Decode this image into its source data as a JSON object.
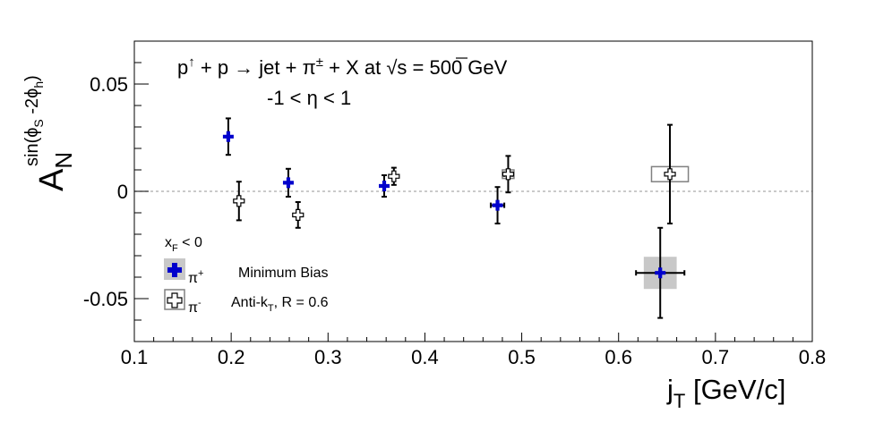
{
  "chart_data": {
    "type": "scatter",
    "title_line1_prefix": "p",
    "title_line1_sup": "↑",
    "title_line1_mid": " + p → jet + π",
    "title_line1_sup2": "±",
    "title_line1_suffix": " + X at  √s = 500 GeV",
    "title_line2": "-1 < η < 1",
    "xlabel_main": "j",
    "xlabel_sub": "T",
    "xlabel_unit": " [GeV/c]",
    "ylabel_main": "A",
    "ylabel_sub": "N",
    "ylabel_sup": "sin(ϕ",
    "ylabel_sup_sub1": "S",
    "ylabel_sup_mid": " -2ϕ",
    "ylabel_sup_sub2": "h",
    "ylabel_sup_end": ")",
    "xlim": [
      0.1,
      0.8
    ],
    "ylim": [
      -0.07,
      0.07
    ],
    "xticks": [
      0.1,
      0.2,
      0.3,
      0.4,
      0.5,
      0.6,
      0.7,
      0.8
    ],
    "xtick_labels": [
      "0.1",
      "0.2",
      "0.3",
      "0.4",
      "0.5",
      "0.6",
      "0.7",
      "0.8"
    ],
    "yticks": [
      -0.05,
      0,
      0.05
    ],
    "ytick_labels": [
      "-0.05",
      "0",
      "0.05"
    ],
    "zero_line": true,
    "legend": {
      "header_main": "x",
      "header_sub": "F",
      "header_rest": " < 0",
      "entries": [
        {
          "symbol": "π",
          "sup": "+",
          "text": "Minimum Bias"
        },
        {
          "symbol": "π",
          "sup": "-",
          "text_main": "Anti-k",
          "text_sub": "T",
          "text_rest": ", R = 0.6"
        }
      ],
      "placement": "bottom-left"
    },
    "series": [
      {
        "marker": "filled-cross",
        "color": "#0000cc",
        "syst_color": "#c8c8c8",
        "x": [
          0.197,
          0.259,
          0.358,
          0.475,
          0.643
        ],
        "y": [
          0.0255,
          0.004,
          0.0025,
          -0.0065,
          -0.038
        ],
        "yerr": [
          0.0085,
          0.0065,
          0.005,
          0.0085,
          0.021
        ],
        "xerr": [
          0.0,
          0.0,
          0.0,
          0.007,
          0.025
        ],
        "syst_x": [
          0.0,
          0.0,
          0.0,
          0.0,
          0.017
        ],
        "syst_y": [
          0.0,
          0.0,
          0.0,
          0.0,
          0.0075
        ]
      },
      {
        "marker": "open-cross",
        "color": "#000000",
        "syst_color": "#808080",
        "x": [
          0.208,
          0.269,
          0.368,
          0.486,
          0.653
        ],
        "y": [
          -0.0045,
          -0.011,
          0.007,
          0.008,
          0.008
        ],
        "yerr": [
          0.009,
          0.006,
          0.004,
          0.0085,
          0.023
        ],
        "xerr": [
          0.0,
          0.0,
          0.0,
          0.004,
          0.0
        ],
        "syst_x": [
          0.0,
          0.0,
          0.0,
          0.006,
          0.019
        ],
        "syst_y": [
          0.0,
          0.0,
          0.0,
          0.002,
          0.0035
        ]
      }
    ]
  }
}
